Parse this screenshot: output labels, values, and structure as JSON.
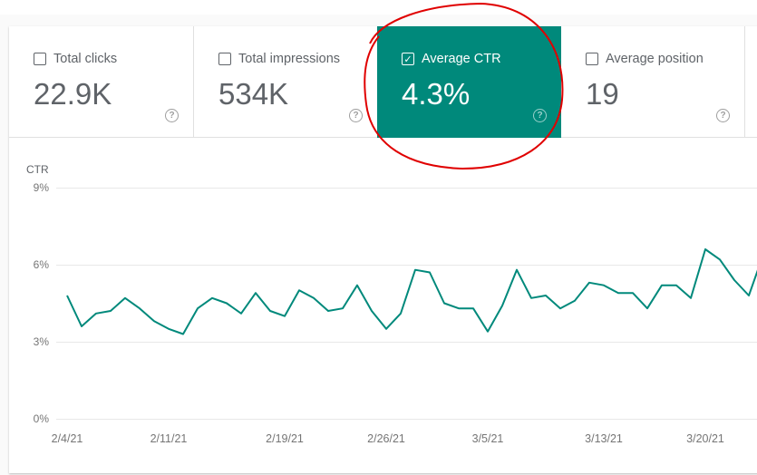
{
  "metrics": [
    {
      "label": "Total clicks",
      "value": "22.9K",
      "checked": false
    },
    {
      "label": "Total impressions",
      "value": "534K",
      "checked": false
    },
    {
      "label": "Average CTR",
      "value": "4.3%",
      "checked": true
    },
    {
      "label": "Average position",
      "value": "19",
      "checked": false
    }
  ],
  "help_glyph": "?",
  "check_glyph": "✓",
  "accent_color": "#00897b",
  "annotation_color": "#e00000",
  "chart_data": {
    "type": "line",
    "title": "",
    "ylabel": "CTR",
    "xlabel": "",
    "ylim": [
      0,
      9
    ],
    "yticks": [
      "9%",
      "6%",
      "3%",
      "0%"
    ],
    "xticks": [
      "2/4/21",
      "2/11/21",
      "2/19/21",
      "2/26/21",
      "3/5/21",
      "3/13/21",
      "3/20/21"
    ],
    "grid": true,
    "series": [
      {
        "name": "Average CTR",
        "color": "#00897b",
        "values": [
          4.8,
          3.6,
          4.1,
          4.2,
          4.7,
          4.3,
          3.8,
          3.5,
          3.3,
          4.3,
          4.7,
          4.5,
          4.1,
          4.9,
          4.2,
          4.0,
          5.0,
          4.7,
          4.2,
          4.3,
          5.2,
          4.2,
          3.5,
          4.1,
          5.8,
          5.7,
          4.5,
          4.3,
          4.3,
          3.4,
          4.4,
          5.8,
          4.7,
          4.8,
          4.3,
          4.6,
          5.3,
          5.2,
          4.9,
          4.9,
          4.3,
          5.2,
          5.2,
          4.7,
          6.6,
          6.2,
          5.4,
          4.8,
          6.4
        ]
      }
    ]
  }
}
